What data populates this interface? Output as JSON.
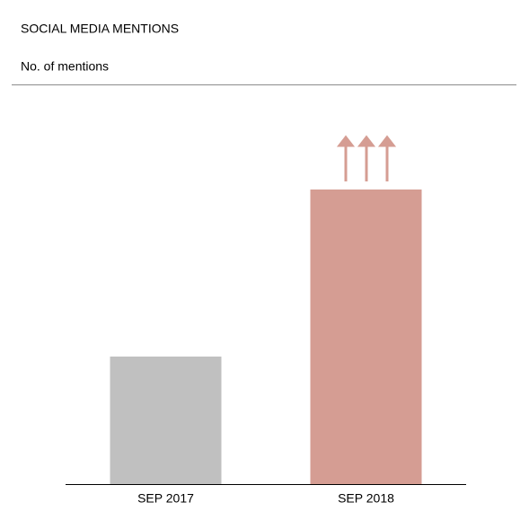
{
  "chart_data": {
    "type": "bar",
    "title": "SOCIAL MEDIA MENTIONS",
    "subtitle": "No. of mentions",
    "categories": [
      "SEP 2017",
      "SEP 2018"
    ],
    "values": [
      142,
      328
    ],
    "colors": [
      "#c0c0c0",
      "#d59d93"
    ],
    "ylim": [
      0,
      410
    ],
    "grid": false
  }
}
